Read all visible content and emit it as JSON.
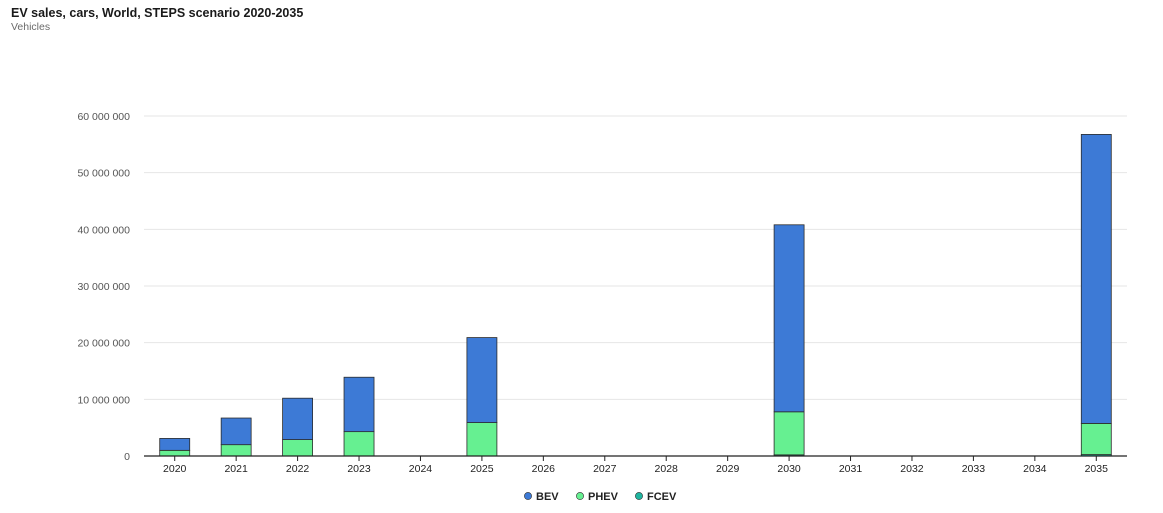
{
  "header": {
    "title": "EV sales, cars, World, STEPS scenario 2020-2035",
    "subtitle": "Vehicles"
  },
  "chart_data": {
    "type": "bar",
    "stacked": true,
    "title": "EV sales, cars, World, STEPS scenario 2020-2035",
    "ylabel": "Vehicles",
    "xlabel": "",
    "ylim": [
      0,
      60000000
    ],
    "yticks": [
      0,
      10000000,
      20000000,
      30000000,
      40000000,
      50000000,
      60000000
    ],
    "ytick_labels": [
      "0",
      "10 000 000",
      "20 000 000",
      "30 000 000",
      "40 000 000",
      "50 000 000",
      "60 000 000"
    ],
    "grid": true,
    "legend_position": "bottom-center",
    "categories": [
      "2020",
      "2021",
      "2022",
      "2023",
      "2024",
      "2025",
      "2026",
      "2027",
      "2028",
      "2029",
      "2030",
      "2031",
      "2032",
      "2033",
      "2034",
      "2035"
    ],
    "series": [
      {
        "name": "FCEV",
        "color": "#1fb5a0",
        "values": [
          0,
          0,
          0,
          0,
          null,
          0,
          null,
          null,
          null,
          null,
          200000,
          null,
          null,
          null,
          null,
          250000
        ]
      },
      {
        "name": "PHEV",
        "color": "#66f091",
        "values": [
          1000000,
          2000000,
          2900000,
          4300000,
          null,
          5900000,
          null,
          null,
          null,
          null,
          7600000,
          null,
          null,
          null,
          null,
          5500000
        ]
      },
      {
        "name": "BEV",
        "color": "#3d7ad6",
        "values": [
          2100000,
          4700000,
          7300000,
          9600000,
          null,
          15000000,
          null,
          null,
          null,
          null,
          33000000,
          null,
          null,
          null,
          null,
          51000000
        ]
      }
    ],
    "legend": [
      {
        "name": "BEV",
        "color": "#3d7ad6"
      },
      {
        "name": "PHEV",
        "color": "#66f091"
      },
      {
        "name": "FCEV",
        "color": "#1fb5a0"
      }
    ]
  }
}
